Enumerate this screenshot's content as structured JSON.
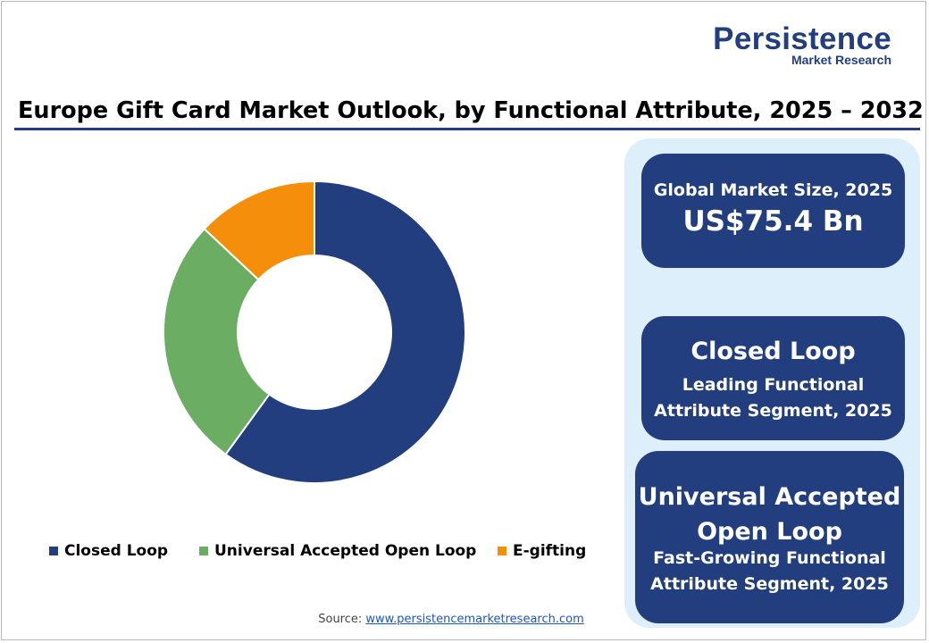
{
  "logo": {
    "main": "Persistence",
    "sub": "Market Research"
  },
  "title": "Europe Gift Card Market Outlook, by Functional Attribute, 2025 – 2032",
  "chart_data": {
    "type": "pie",
    "donut": true,
    "title": "Europe Gift Card Market Outlook, by Functional Attribute, 2025 – 2032",
    "categories": [
      "Closed Loop",
      "Universal Accepted Open Loop",
      "E-gifting"
    ],
    "values": [
      60,
      27,
      13
    ],
    "colors": [
      "#233e7f",
      "#6aad63",
      "#f58f0b"
    ],
    "legend_position": "bottom"
  },
  "legend": [
    {
      "label": "Closed Loop",
      "color": "#233e7f"
    },
    {
      "label": "Universal Accepted Open Loop",
      "color": "#6aad63"
    },
    {
      "label": "E-gifting",
      "color": "#f58f0b"
    }
  ],
  "cards": {
    "market_size": {
      "label": "Global Market Size, 2025",
      "value": "US$75.4 Bn"
    },
    "leading": {
      "value": "Closed Loop",
      "label_line1": "Leading Functional",
      "label_line2": "Attribute Segment, 2025"
    },
    "fastest": {
      "value_line1": "Universal Accepted",
      "value_line2": "Open Loop",
      "label_line1": "Fast-Growing Functional",
      "label_line2": "Attribute Segment, 2025"
    }
  },
  "source": {
    "prefix": "Source: ",
    "link": "www.persistencemarketresearch.com"
  },
  "colors": {
    "brand": "#233e7f",
    "panel": "#ddeffa"
  }
}
